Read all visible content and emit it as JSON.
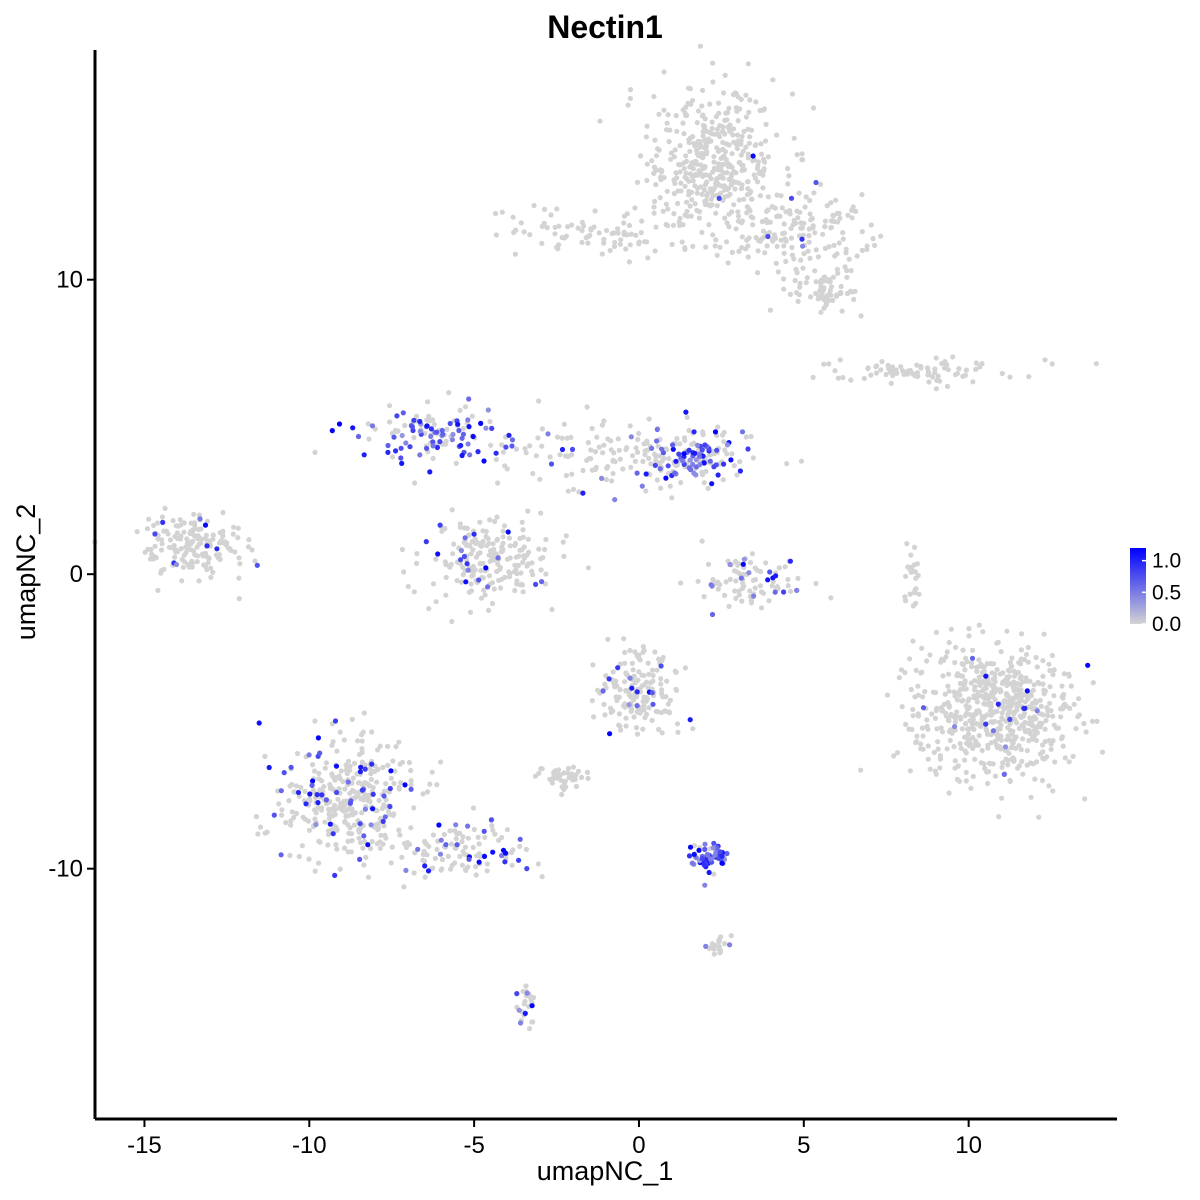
{
  "chart_data": {
    "type": "scatter",
    "title": "Nectin1",
    "xlabel": "umapNC_1",
    "ylabel": "umapNC_2",
    "xlim": [
      -16.5,
      14.5
    ],
    "ylim": [
      -18.5,
      17.8
    ],
    "x_ticks": [
      -15,
      -10,
      -5,
      0,
      5,
      10
    ],
    "y_ticks": [
      -10,
      0,
      10
    ],
    "x_tick_labels": [
      "-15",
      "-10",
      "-5",
      "0",
      "5",
      "10"
    ],
    "y_tick_labels": [
      "-10",
      "0",
      "10"
    ],
    "grid": false,
    "point_color_low": "#d3d3d3",
    "point_color_high": "#0000ff",
    "legend": {
      "position": "right",
      "type": "colorbar",
      "range": [
        0,
        1.2
      ],
      "breaks": [
        0.0,
        0.5,
        1.0
      ],
      "labels": [
        "0.0",
        "0.5",
        "1.0"
      ]
    },
    "clusters": [
      {
        "id": "top-main",
        "cx": 2.3,
        "cy": 14.0,
        "sx": 1.0,
        "sy": 1.2,
        "n": 420
      },
      {
        "id": "top-arm-left",
        "cx": -1.2,
        "cy": 11.5,
        "sx": 1.5,
        "sy": 0.4,
        "n": 90
      },
      {
        "id": "top-arm-right",
        "cx": 4.8,
        "cy": 11.6,
        "sx": 1.1,
        "sy": 0.7,
        "n": 150
      },
      {
        "id": "top-tail",
        "cx": 5.6,
        "cy": 9.6,
        "sx": 0.5,
        "sy": 0.35,
        "n": 60
      },
      {
        "id": "right-upper-strip",
        "cx": 8.6,
        "cy": 6.9,
        "sx": 1.5,
        "sy": 0.2,
        "n": 80
      },
      {
        "id": "left-blob",
        "cx": -13.5,
        "cy": 1.0,
        "sx": 0.8,
        "sy": 0.55,
        "n": 170
      },
      {
        "id": "center-lower-blob",
        "cx": -4.5,
        "cy": 0.5,
        "sx": 1.0,
        "sy": 0.7,
        "n": 210
      },
      {
        "id": "center-right-arm",
        "cx": -0.5,
        "cy": 4.0,
        "sx": 1.9,
        "sy": 0.6,
        "n": 170
      },
      {
        "id": "center-right-hot",
        "cx": 1.8,
        "cy": 4.0,
        "sx": 0.6,
        "sy": 0.35,
        "n": 90
      },
      {
        "id": "upper-left-arm",
        "cx": -6.2,
        "cy": 4.8,
        "sx": 1.3,
        "sy": 0.5,
        "n": 130
      },
      {
        "id": "small-crescent",
        "cx": 3.5,
        "cy": -0.3,
        "sx": 0.8,
        "sy": 0.4,
        "n": 90
      },
      {
        "id": "right-large",
        "cx": 10.8,
        "cy": -4.7,
        "sx": 1.2,
        "sy": 1.15,
        "n": 640
      },
      {
        "id": "right-small-arc",
        "cx": 8.3,
        "cy": 0.0,
        "sx": 0.15,
        "sy": 0.6,
        "n": 25
      },
      {
        "id": "center-middle",
        "cx": 0.0,
        "cy": -4.0,
        "sx": 0.6,
        "sy": 0.6,
        "n": 170
      },
      {
        "id": "small-left-mid",
        "cx": -2.3,
        "cy": -6.9,
        "sx": 0.35,
        "sy": 0.2,
        "n": 40
      },
      {
        "id": "bottom-left-big",
        "cx": -8.8,
        "cy": -7.8,
        "sx": 1.0,
        "sy": 1.1,
        "n": 380
      },
      {
        "id": "bottom-left-arm",
        "cx": -5.3,
        "cy": -9.4,
        "sx": 1.0,
        "sy": 0.5,
        "n": 110
      },
      {
        "id": "bottom-hot-small",
        "cx": 2.2,
        "cy": -9.6,
        "sx": 0.35,
        "sy": 0.2,
        "n": 60
      },
      {
        "id": "bottom-tail-1",
        "cx": -3.4,
        "cy": -14.5,
        "sx": 0.15,
        "sy": 0.4,
        "n": 28
      },
      {
        "id": "bottom-small-right",
        "cx": 2.3,
        "cy": -12.6,
        "sx": 0.25,
        "sy": 0.15,
        "n": 20
      }
    ]
  }
}
